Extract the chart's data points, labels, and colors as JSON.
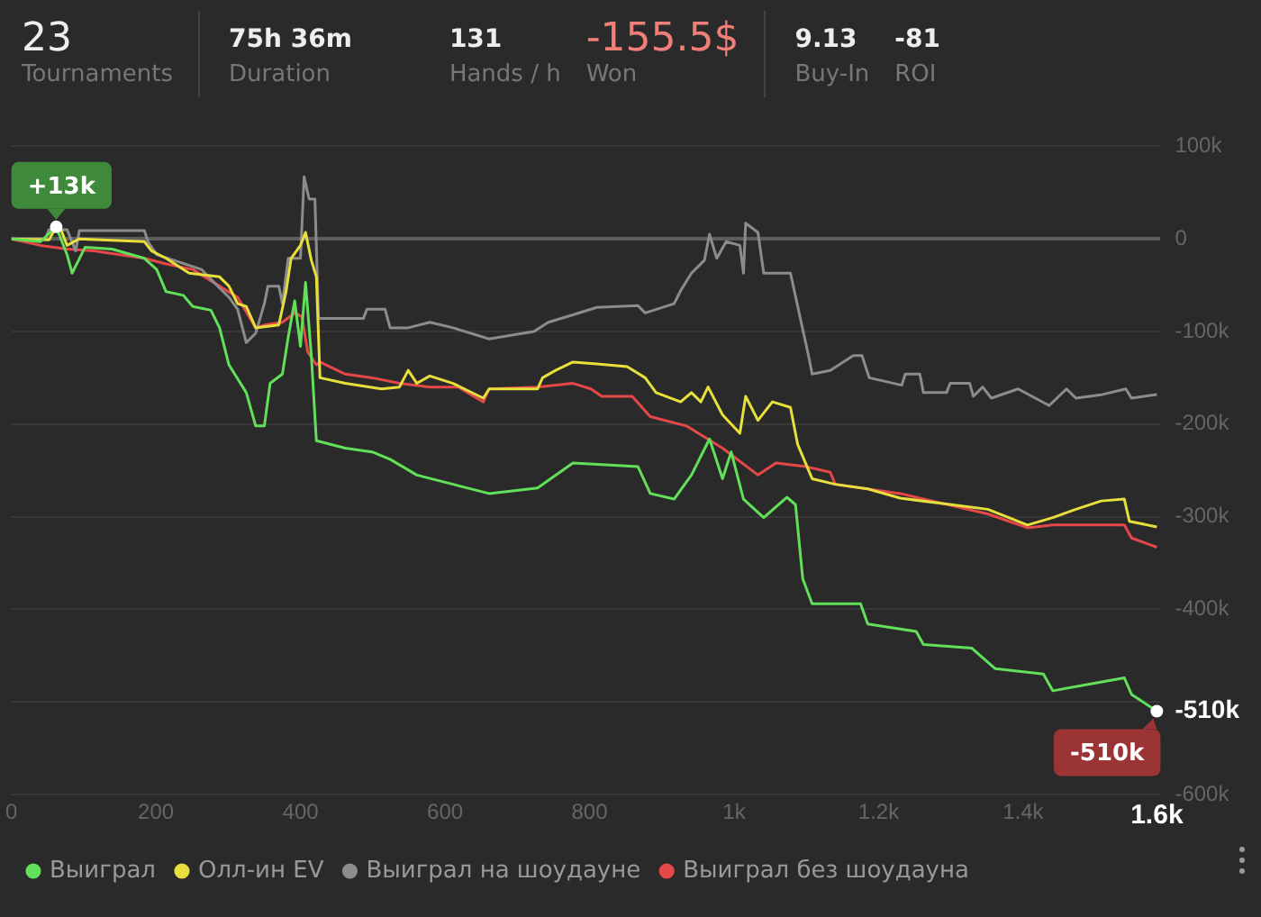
{
  "chart_data": [
    {
      "type": "other",
      "annotations": [
        "23",
        "Tournaments",
        "75h 36m",
        "Duration",
        "131",
        "Hands / h",
        "-155.5$",
        "Won",
        "9.13",
        "Buy-In",
        "-81",
        "ROI"
      ]
    },
    {
      "type": "line",
      "xlim": [
        0,
        1590
      ],
      "xticks": [
        0,
        {
          "value": 200,
          "label": "200"
        },
        {
          "value": 400,
          "label": "400"
        },
        {
          "value": 600,
          "label": "600"
        },
        {
          "value": 800,
          "label": "800"
        },
        {
          "value": 1000,
          "label": "1k"
        },
        {
          "value": 1200,
          "label": "1.2k"
        },
        {
          "value": 1400,
          "label": "1.4k"
        },
        {
          "value": 1585,
          "label": "1.6k"
        }
      ],
      "ylim": [
        -600000,
        100000
      ],
      "yticks": [
        {
          "value": 100000,
          "label": "100k"
        },
        0,
        {
          "value": -100000,
          "label": "-100k"
        },
        {
          "value": -200000,
          "label": "-200k"
        },
        {
          "value": -300000,
          "label": "-300k"
        },
        {
          "value": -400000,
          "label": "-400k"
        },
        {
          "value": -500000,
          "label": null
        },
        {
          "value": -510000,
          "label": "-510k"
        },
        {
          "value": -600000,
          "label": "-600k"
        }
      ],
      "grid": "y",
      "legend": "bottom",
      "marker": "none",
      "line_style": "solid",
      "annotations": [
        {
          "text": "+13k",
          "x": 62,
          "y": 13000
        },
        {
          "text": "-510k",
          "x": 1585,
          "y": -510000
        }
      ],
      "series": [
        {
          "name": "Выиграл",
          "color": "#62e05a",
          "x": [
            0,
            40,
            62,
            77,
            84,
            102,
            139,
            184,
            201,
            214,
            238,
            251,
            276,
            288,
            301,
            325,
            338,
            350,
            358,
            375,
            383,
            392,
            400,
            407,
            415,
            422,
            462,
            499,
            524,
            561,
            611,
            661,
            728,
            777,
            867,
            884,
            917,
            941,
            966,
            984,
            996,
            1013,
            1041,
            1073,
            1085,
            1095,
            1108,
            1175,
            1185,
            1252,
            1262,
            1329,
            1361,
            1428,
            1441,
            1540,
            1550,
            1585
          ],
          "values": [
            0,
            -3000,
            13000,
            -17000,
            -37000,
            -9000,
            -11000,
            -21000,
            -33000,
            -57000,
            -61000,
            -73000,
            -77000,
            -96000,
            -136000,
            -166000,
            -202000,
            -202000,
            -156000,
            -146000,
            -106000,
            -67000,
            -116000,
            -47000,
            -126000,
            -218000,
            -226000,
            -230000,
            -238000,
            -255000,
            -265000,
            -275000,
            -269000,
            -242000,
            -246000,
            -275000,
            -281000,
            -255000,
            -216000,
            -259000,
            -230000,
            -281000,
            -301000,
            -279000,
            -287000,
            -367000,
            -394000,
            -394000,
            -416000,
            -424000,
            -438000,
            -442000,
            -464000,
            -470000,
            -488000,
            -474000,
            -492000,
            -510000
          ]
        },
        {
          "name": "Олл-ин EV",
          "color": "#e6df3c",
          "x": [
            0,
            52,
            65,
            77,
            94,
            184,
            194,
            214,
            246,
            288,
            301,
            313,
            325,
            338,
            370,
            380,
            387,
            400,
            407,
            415,
            422,
            427,
            462,
            512,
            537,
            549,
            561,
            579,
            611,
            653,
            661,
            728,
            735,
            753,
            777,
            810,
            852,
            877,
            892,
            926,
            941,
            954,
            964,
            984,
            1008,
            1016,
            1033,
            1053,
            1078,
            1088,
            1108,
            1140,
            1185,
            1230,
            1351,
            1406,
            1441,
            1473,
            1508,
            1540,
            1547,
            1585
          ],
          "values": [
            0,
            -1000,
            17000,
            -7000,
            0,
            -3000,
            -13000,
            -21000,
            -37000,
            -41000,
            -51000,
            -70000,
            -73000,
            -96000,
            -93000,
            -57000,
            -21000,
            -7000,
            7000,
            -23000,
            -41000,
            -150000,
            -156000,
            -162000,
            -160000,
            -142000,
            -156000,
            -148000,
            -156000,
            -172000,
            -162000,
            -162000,
            -150000,
            -142000,
            -133000,
            -135000,
            -138000,
            -150000,
            -166000,
            -176000,
            -166000,
            -176000,
            -160000,
            -190000,
            -210000,
            -170000,
            -196000,
            -176000,
            -182000,
            -222000,
            -259000,
            -265000,
            -270000,
            -280000,
            -292000,
            -309000,
            -301000,
            -292000,
            -283000,
            -281000,
            -305000,
            -311000
          ]
        },
        {
          "name": "Выиграл на шоудауне",
          "color": "#8c8c8c",
          "x": [
            0,
            47,
            52,
            77,
            89,
            94,
            184,
            189,
            201,
            263,
            288,
            301,
            313,
            325,
            338,
            350,
            355,
            370,
            375,
            383,
            400,
            405,
            412,
            420,
            425,
            487,
            492,
            517,
            524,
            549,
            579,
            611,
            661,
            723,
            743,
            777,
            810,
            867,
            877,
            917,
            926,
            941,
            959,
            966,
            976,
            989,
            1008,
            1013,
            1016,
            1033,
            1041,
            1078,
            1090,
            1103,
            1108,
            1133,
            1165,
            1177,
            1187,
            1232,
            1237,
            1257,
            1262,
            1294,
            1299,
            1326,
            1331,
            1344,
            1356,
            1393,
            1436,
            1460,
            1473,
            1510,
            1542,
            1550,
            1585
          ],
          "values": [
            0,
            0,
            10000,
            10000,
            -13000,
            9000,
            9000,
            -3000,
            -17000,
            -33000,
            -53000,
            -63000,
            -76000,
            -112000,
            -102000,
            -70000,
            -51000,
            -51000,
            -70000,
            -21000,
            -21000,
            67000,
            43000,
            43000,
            -86000,
            -86000,
            -76000,
            -76000,
            -96000,
            -96000,
            -90000,
            -96000,
            -108000,
            -100000,
            -90000,
            -82000,
            -74000,
            -72000,
            -80000,
            -70000,
            -56000,
            -37000,
            -23000,
            5000,
            -21000,
            -3000,
            -7000,
            -37000,
            17000,
            7000,
            -37000,
            -37000,
            -80000,
            -126000,
            -146000,
            -142000,
            -126000,
            -126000,
            -150000,
            -158000,
            -146000,
            -146000,
            -166000,
            -166000,
            -156000,
            -156000,
            -170000,
            -160000,
            -172000,
            -162000,
            -180000,
            -162000,
            -172000,
            -168000,
            -162000,
            -172000,
            -168000
          ]
        },
        {
          "name": "Выиграл без шоудауна",
          "color": "#e64848",
          "x": [
            0,
            40,
            77,
            114,
            184,
            214,
            251,
            288,
            313,
            338,
            350,
            375,
            392,
            402,
            410,
            422,
            427,
            462,
            499,
            537,
            579,
            618,
            653,
            661,
            728,
            777,
            802,
            817,
            859,
            884,
            934,
            984,
            1033,
            1058,
            1100,
            1133,
            1140,
            1230,
            1351,
            1406,
            1441,
            1540,
            1550,
            1585
          ],
          "values": [
            0,
            -7000,
            -11000,
            -13000,
            -21000,
            -27000,
            -33000,
            -51000,
            -63000,
            -96000,
            -93000,
            -90000,
            -80000,
            -84000,
            -122000,
            -136000,
            -133000,
            -146000,
            -150000,
            -156000,
            -160000,
            -160000,
            -176000,
            -162000,
            -160000,
            -156000,
            -162000,
            -170000,
            -170000,
            -192000,
            -202000,
            -226000,
            -255000,
            -242000,
            -246000,
            -252000,
            -265000,
            -275000,
            -297000,
            -312000,
            -309000,
            -309000,
            -323000,
            -333000
          ]
        }
      ]
    }
  ]
}
